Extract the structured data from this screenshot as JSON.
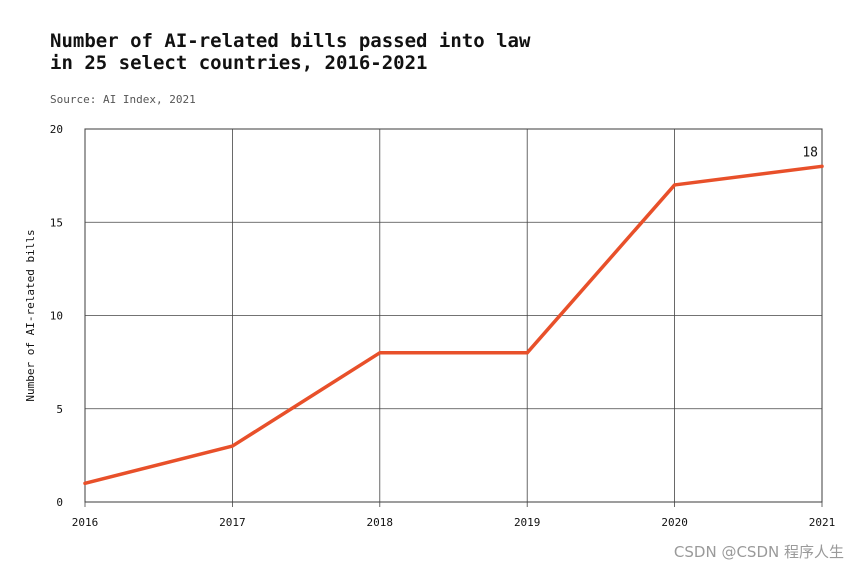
{
  "chart_data": {
    "type": "line",
    "title_lines": [
      "Number of AI-related bills passed into law",
      "in 25 select countries, 2016-2021"
    ],
    "subtitle": "Source: AI Index, 2021",
    "xlabel": "",
    "ylabel": "Number of AI-related bills",
    "x": [
      "2016",
      "2017",
      "2018",
      "2019",
      "2020",
      "2021"
    ],
    "series": [
      {
        "values": [
          1,
          3,
          8,
          8,
          17,
          18
        ],
        "color": "#e8502a"
      }
    ],
    "ylim": [
      0,
      20
    ],
    "yticks": [
      "0",
      "5",
      "10",
      "15",
      "20"
    ],
    "data_labels": [
      {
        "index": 5,
        "text": "18"
      }
    ],
    "grid": true,
    "legend": "none"
  },
  "watermark": "CSDN @CSDN 程序人生"
}
